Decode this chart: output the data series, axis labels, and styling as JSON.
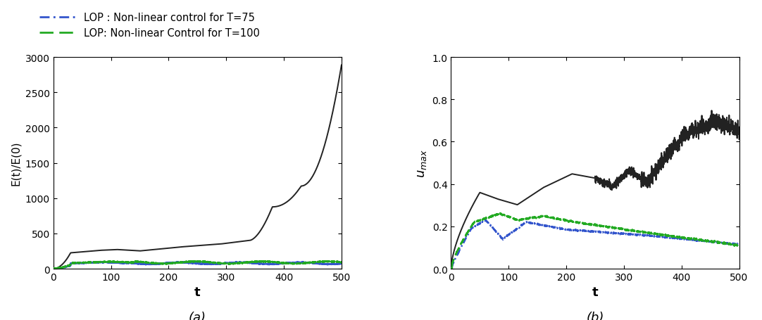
{
  "title_a": "(a)",
  "title_b": "(b)",
  "xlabel": "t",
  "ylabel_a": "E(t)/E(0)",
  "ylabel_b": "$u_{max}$",
  "xlim": [
    0,
    500
  ],
  "ylim_a": [
    0,
    3000
  ],
  "ylim_b": [
    0,
    1
  ],
  "yticks_a": [
    0,
    500,
    1000,
    1500,
    2000,
    2500,
    3000
  ],
  "yticks_b": [
    0,
    0.2,
    0.4,
    0.6,
    0.8,
    1.0
  ],
  "xticks": [
    0,
    100,
    200,
    300,
    400,
    500
  ],
  "legend_label_t75": "LOP : Non-linear control for T=75",
  "legend_label_t100": "LOP: Non-linear Control for T=100",
  "color_uncontrolled": "#222222",
  "color_t75": "#3355cc",
  "color_t100": "#22aa22",
  "lw_uncontrolled": 1.4,
  "lw_controlled": 1.8,
  "figsize": [
    10.82,
    4.56
  ],
  "dpi": 100
}
